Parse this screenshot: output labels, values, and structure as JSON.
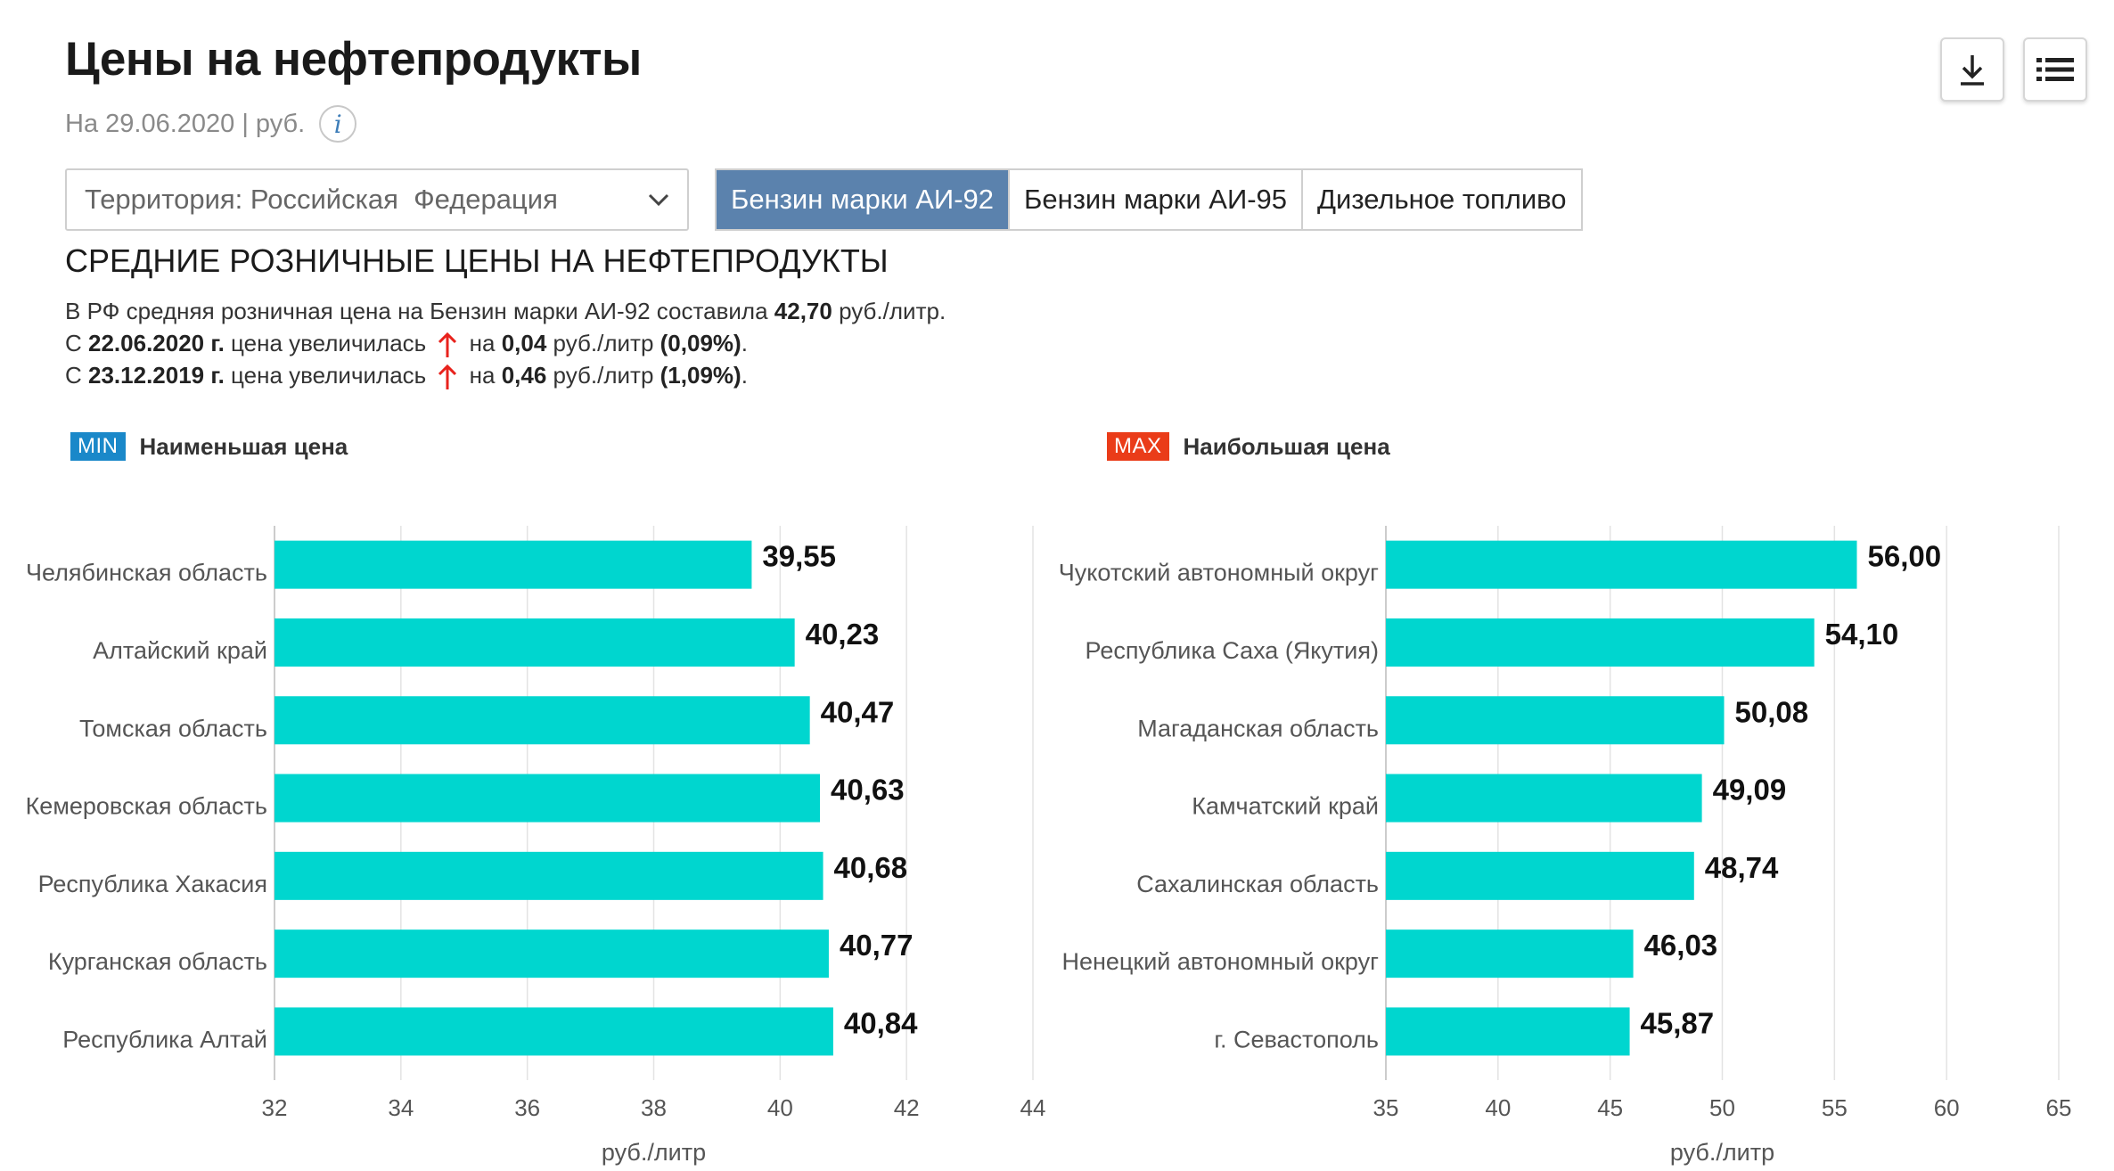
{
  "header": {
    "title": "Цены на нефтепродукты",
    "subtitle": "На 29.06.2020 | руб.",
    "info_icon": "info-icon",
    "download_icon": "download-icon",
    "menu_icon": "list-menu-icon"
  },
  "territory_select": {
    "value": "Территория: Российская  Федерация"
  },
  "fuel_tabs": [
    {
      "label": "Бензин марки АИ-92",
      "active": true
    },
    {
      "label": "Бензин марки АИ-95",
      "active": false
    },
    {
      "label": "Дизельное топливо",
      "active": false
    }
  ],
  "section_title": "СРЕДНИЕ РОЗНИЧНЫЕ ЦЕНЫ НА НЕФТЕПРОДУКТЫ",
  "summary": {
    "line1_text": "В РФ средняя розничная цена на Бензин марки АИ-92 составила ",
    "line1_value": "42,70",
    "line1_unit": " руб./литр.",
    "line2_prefix": "С ",
    "line2_date": "22.06.2020 г.",
    "line2_mid": " цена увеличилась",
    "line2_na": "на ",
    "line2_value": "0,04",
    "line2_unit": " руб./литр ",
    "line2_pct": "(0,09%)",
    "line3_prefix": "С ",
    "line3_date": "23.12.2019 г.",
    "line3_mid": " цена увеличилась",
    "line3_na": "на ",
    "line3_value": "0,46",
    "line3_unit": " руб./литр ",
    "line3_pct": "(1,09%)",
    "period_end": "."
  },
  "colors": {
    "bar": "#00d6cf",
    "tab_active": "#5b82ad",
    "min_badge": "#1a88c9",
    "max_badge": "#ea3c19",
    "arrow_up": "#e8221c"
  },
  "legend_min": {
    "badge": "MIN",
    "label": "Наименьшая цена"
  },
  "legend_max": {
    "badge": "MAX",
    "label": "Наибольшая цена"
  },
  "chart_data": [
    {
      "type": "bar",
      "orientation": "horizontal",
      "categories": [
        "Челябинская область",
        "Алтайский край",
        "Томская область",
        "Кемеровская область",
        "Республика Хакасия",
        "Курганская область",
        "Республика Алтай"
      ],
      "values": [
        39.55,
        40.23,
        40.47,
        40.63,
        40.68,
        40.77,
        40.84
      ],
      "value_labels": [
        "39,55",
        "40,23",
        "40,47",
        "40,63",
        "40,68",
        "40,77",
        "40,84"
      ],
      "xlabel": "руб./литр",
      "xlim": [
        32,
        44
      ],
      "xticks": [
        32,
        34,
        36,
        38,
        40,
        42,
        44
      ],
      "grid": true
    },
    {
      "type": "bar",
      "orientation": "horizontal",
      "categories": [
        "Чукотский автономный округ",
        "Республика Саха (Якутия)",
        "Магаданская область",
        "Камчатский край",
        "Сахалинская область",
        "Ненецкий автономный округ",
        "г. Севастополь"
      ],
      "values": [
        56.0,
        54.1,
        50.08,
        49.09,
        48.74,
        46.03,
        45.87
      ],
      "value_labels": [
        "56,00",
        "54,10",
        "50,08",
        "49,09",
        "48,74",
        "46,03",
        "45,87"
      ],
      "xlabel": "руб./литр",
      "xlim": [
        35,
        65
      ],
      "xticks": [
        35,
        40,
        45,
        50,
        55,
        60,
        65
      ],
      "grid": true
    }
  ]
}
